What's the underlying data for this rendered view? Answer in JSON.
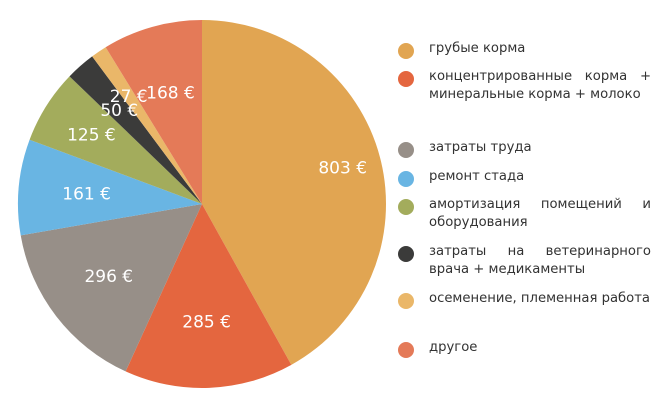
{
  "chart_data": {
    "type": "pie",
    "series": [
      {
        "name": "грубые корма",
        "value": 803,
        "label": "803 €",
        "color": "#E1A552"
      },
      {
        "name": "концентрированные корма + минеральные корма + молоко",
        "value": 285,
        "label": "285 €",
        "color": "#E4663F"
      },
      {
        "name": "затраты труда",
        "value": 296,
        "label": "296 €",
        "color": "#978F88"
      },
      {
        "name": "ремонт стада",
        "value": 161,
        "label": "161 €",
        "color": "#69B5E3"
      },
      {
        "name": "амортизация помещений и оборудования",
        "value": 125,
        "label": "125 €",
        "color": "#A3AC5C"
      },
      {
        "name": "затраты на ветеринарного врача + медикаменты",
        "value": 50,
        "label": "50 €",
        "color": "#3B3B3A"
      },
      {
        "name": "осеменение, племенная работа",
        "value": 27,
        "label": "27 €",
        "color": "#EAB769"
      },
      {
        "name": "другое",
        "value": 168,
        "label": "168 €",
        "color": "#E47A58"
      }
    ],
    "legend": {
      "position": "right",
      "items": [
        "грубые корма",
        "концентрированные корма + минеральные корма + молоко",
        "затраты труда",
        "ремонт стада",
        "амортизация помещений и оборудования",
        "затраты на ветеринарного врача + медикаменты",
        "осеменение, племенная работа",
        "другое"
      ]
    }
  }
}
